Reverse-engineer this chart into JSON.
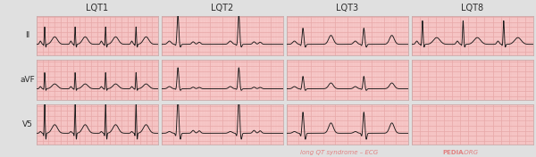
{
  "title_labels": [
    "LQT1",
    "LQT2",
    "LQT3",
    "LQT8"
  ],
  "row_labels": [
    "II",
    "aVF",
    "V5"
  ],
  "bg_color": "#f9cccc",
  "grid_major_color": "#e8a8a8",
  "grid_minor_color": "#f2bbbb",
  "ecg_color": "#1a1a1a",
  "border_color": "#ccaaaa",
  "outer_bg": "#e0e0e0",
  "watermark_color": "#e08080",
  "num_cols": 4,
  "num_rows": 3,
  "show_panel": {
    "lqt1": {
      "II": true,
      "aVF": true,
      "V5": true
    },
    "lqt2": {
      "II": true,
      "aVF": true,
      "V5": true
    },
    "lqt3": {
      "II": true,
      "aVF": true,
      "V5": true
    },
    "lqt8": {
      "II": true,
      "aVF": false,
      "V5": false
    }
  },
  "r_scales": {
    "lqt1": {
      "II": 0.7,
      "aVF": 0.65,
      "V5": 1.3
    },
    "lqt2": {
      "II": 1.2,
      "aVF": 0.85,
      "V5": 1.4
    },
    "lqt3": {
      "II": 0.65,
      "aVF": 0.5,
      "V5": 0.85
    },
    "lqt8": {
      "II": 0.95,
      "aVF": 0.75,
      "V5": 1.5
    }
  },
  "num_beats": {
    "lqt1": 4,
    "lqt2": 2,
    "lqt3": 2,
    "lqt8": 3
  }
}
